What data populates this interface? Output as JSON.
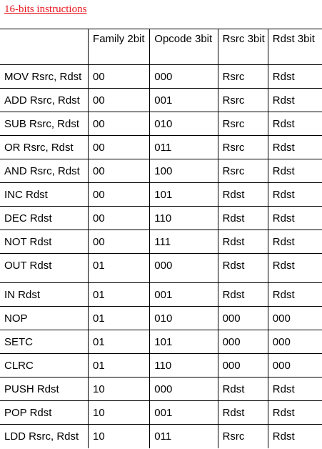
{
  "title": "16-bits instructions",
  "columns": [
    "",
    "Family 2bit",
    "Opcode 3bit",
    "Rsrc 3bit",
    "Rdst  3bit"
  ],
  "rows": [
    {
      "instr": "MOV Rsrc, Rdst",
      "family": "00",
      "opcode": "000",
      "rsrc": "Rsrc",
      "rdst": "Rdst"
    },
    {
      "instr": "ADD Rsrc, Rdst",
      "family": "00",
      "opcode": "001",
      "rsrc": "Rsrc",
      "rdst": "Rdst"
    },
    {
      "instr": "SUB Rsrc, Rdst",
      "family": "00",
      "opcode": "010",
      "rsrc": "Rsrc",
      "rdst": "Rdst"
    },
    {
      "instr": "OR Rsrc, Rdst",
      "family": "00",
      "opcode": "011",
      "rsrc": "Rsrc",
      "rdst": "Rdst"
    },
    {
      "instr": "AND Rsrc, Rdst",
      "family": "00",
      "opcode": "100",
      "rsrc": "Rsrc",
      "rdst": "Rdst"
    },
    {
      "instr": "INC Rdst",
      "family": "00",
      "opcode": "101",
      "rsrc": "Rdst",
      "rdst": "Rdst"
    },
    {
      "instr": "DEC Rdst",
      "family": "00",
      "opcode": "110",
      "rsrc": "Rdst",
      "rdst": "Rdst"
    },
    {
      "instr": "NOT Rdst",
      "family": "00",
      "opcode": "111",
      "rsrc": "Rdst",
      "rdst": "Rdst"
    },
    {
      "instr": "OUT Rdst",
      "family": "01",
      "opcode": "000",
      "rsrc": "Rdst",
      "rdst": "Rdst"
    },
    {
      "instr": "IN Rdst",
      "family": "01",
      "opcode": "001",
      "rsrc": "Rdst",
      "rdst": "Rdst"
    },
    {
      "instr": "NOP",
      "family": "01",
      "opcode": "010",
      "rsrc": "000",
      "rdst": "000"
    },
    {
      "instr": "SETC",
      "family": "01",
      "opcode": "101",
      "rsrc": "000",
      "rdst": "000"
    },
    {
      "instr": "CLRC",
      "family": "01",
      "opcode": "110",
      "rsrc": "000",
      "rdst": "000"
    },
    {
      "instr": "PUSH Rdst",
      "family": "10",
      "opcode": "000",
      "rsrc": "Rdst",
      "rdst": "Rdst"
    },
    {
      "instr": "POP Rdst",
      "family": "10",
      "opcode": "001",
      "rsrc": "Rdst",
      "rdst": "Rdst"
    },
    {
      "instr": "LDD Rsrc, Rdst",
      "family": "10",
      "opcode": "011",
      "rsrc": "Rsrc",
      "rdst": "Rdst"
    }
  ]
}
